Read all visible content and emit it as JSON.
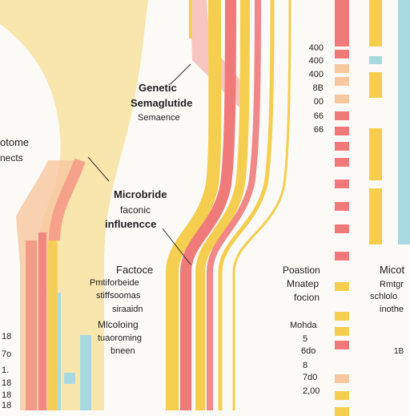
{
  "colors": {
    "background": "#fbfaf7",
    "red": "#f07a7a",
    "coral": "#f59a86",
    "peach": "#f7c79d",
    "yellow": "#f5cd4f",
    "light_yellow": "#f8df94",
    "blue": "#a9d9e0",
    "leader": "#2a2a2a"
  },
  "labels": {
    "genetic": [
      "Genetic",
      "Semaglutide",
      "Semaence"
    ],
    "left_top": [
      "otome",
      "nects"
    ],
    "microbride": [
      "Microbride",
      "faconic",
      "influencce"
    ],
    "factor_group": [
      "Factoce",
      "Pmtiforbeide",
      "stiffsoomas",
      "siraaidn",
      "Mlcoloing",
      "tuaoroming",
      "bneen"
    ],
    "position_group": [
      "Poastion",
      "Mnatep",
      "focion"
    ],
    "mid_numbers": [
      "Mohda",
      "5",
      "6do",
      "8",
      "7d0",
      "2,00"
    ],
    "right_group": [
      "Micot",
      "Rmtgr",
      "schlolo",
      "inothe"
    ],
    "left_edge_numbers": [
      "18",
      "7o",
      "1.",
      "18",
      "18",
      "18"
    ],
    "right_edge_number": "1B",
    "scale": [
      "400",
      "400",
      "400",
      "8B",
      "00",
      "66"
    ]
  },
  "legend_blocks": [
    {
      "color": "red",
      "filled": true
    },
    {
      "color": "peach",
      "filled": true
    },
    {
      "color": "peach",
      "filled": true
    },
    {
      "color": "peach",
      "filled": true
    },
    {
      "color": "red",
      "filled": true
    },
    {
      "color": "red",
      "filled": true
    },
    {
      "color": "red",
      "filled": true
    },
    {
      "color": "red",
      "filled": true
    },
    {
      "color": "red",
      "filled": true
    },
    {
      "color": "red",
      "filled": true
    },
    {
      "color": "red",
      "filled": true
    },
    {
      "color": "red",
      "filled": true
    },
    {
      "color": "yellow",
      "filled": true
    },
    {
      "color": "yellow",
      "filled": true
    },
    {
      "color": "yellow",
      "filled": true
    },
    {
      "color": "red",
      "filled": true
    },
    {
      "color": "peach",
      "filled": true
    },
    {
      "color": "yellow",
      "filled": true
    },
    {
      "color": "yellow",
      "filled": true
    }
  ]
}
